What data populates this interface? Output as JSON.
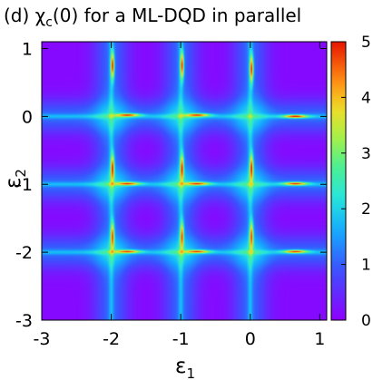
{
  "chart_data": {
    "type": "heatmap",
    "title": "(d) χ",
    "title_subscript": "c",
    "title_rest": "(0) for a ML-DQD in parallel",
    "xlabel": "ε",
    "xlabel_subscript": "1",
    "ylabel": "ε",
    "ylabel_subscript": "2",
    "xlim": [
      -3,
      1.1
    ],
    "ylim": [
      -3,
      1.1
    ],
    "x_ticks": [
      -3,
      -2,
      -1,
      0,
      1
    ],
    "y_ticks": [
      -3,
      -2,
      -1,
      0,
      1
    ],
    "x_tick_labels": [
      "-3",
      "-2",
      "-1",
      "0",
      "1"
    ],
    "y_tick_labels": [
      "-3",
      "-2",
      "-1",
      "0",
      "1"
    ],
    "colorbar": {
      "range": [
        0,
        5
      ],
      "ticks": [
        0,
        1,
        2,
        3,
        4,
        5
      ],
      "tick_labels": [
        "0",
        "1",
        "2",
        "3",
        "4",
        "5"
      ],
      "colormap": "rainbow (violet-blue-cyan-green-yellow-red)"
    },
    "resonance_lines": {
      "x_positions": [
        -2,
        -1,
        0
      ],
      "y_positions": [
        -2,
        -1,
        0
      ],
      "line_value": 1.7,
      "background_min": 0.1,
      "background_near_line": 1.0
    },
    "hot_spots": [
      {
        "x": -1.98,
        "y": 0.75,
        "value": 5.0,
        "orientation": "vertical"
      },
      {
        "x": -0.98,
        "y": 0.75,
        "value": 5.0,
        "orientation": "vertical"
      },
      {
        "x": 0.02,
        "y": 0.7,
        "value": 5.0,
        "orientation": "vertical"
      },
      {
        "x": -1.75,
        "y": 0.02,
        "value": 4.6,
        "orientation": "horizontal"
      },
      {
        "x": -0.75,
        "y": 0.02,
        "value": 4.6,
        "orientation": "horizontal"
      },
      {
        "x": 0.65,
        "y": 0.0,
        "value": 5.0,
        "orientation": "horizontal"
      },
      {
        "x": -1.98,
        "y": -0.75,
        "value": 4.7,
        "orientation": "vertical"
      },
      {
        "x": -0.98,
        "y": -0.75,
        "value": 4.7,
        "orientation": "vertical"
      },
      {
        "x": 0.02,
        "y": -0.75,
        "value": 4.7,
        "orientation": "vertical"
      },
      {
        "x": -1.75,
        "y": -0.99,
        "value": 4.5,
        "orientation": "horizontal"
      },
      {
        "x": -0.75,
        "y": -0.99,
        "value": 4.5,
        "orientation": "horizontal"
      },
      {
        "x": 0.65,
        "y": -0.99,
        "value": 4.9,
        "orientation": "horizontal"
      },
      {
        "x": -1.98,
        "y": -1.75,
        "value": 4.5,
        "orientation": "vertical"
      },
      {
        "x": -0.98,
        "y": -1.75,
        "value": 4.5,
        "orientation": "vertical"
      },
      {
        "x": 0.02,
        "y": -1.75,
        "value": 4.5,
        "orientation": "vertical"
      },
      {
        "x": -1.75,
        "y": -1.99,
        "value": 4.4,
        "orientation": "horizontal"
      },
      {
        "x": -0.75,
        "y": -1.99,
        "value": 4.4,
        "orientation": "horizontal"
      },
      {
        "x": 0.65,
        "y": -1.99,
        "value": 4.8,
        "orientation": "horizontal"
      }
    ]
  }
}
